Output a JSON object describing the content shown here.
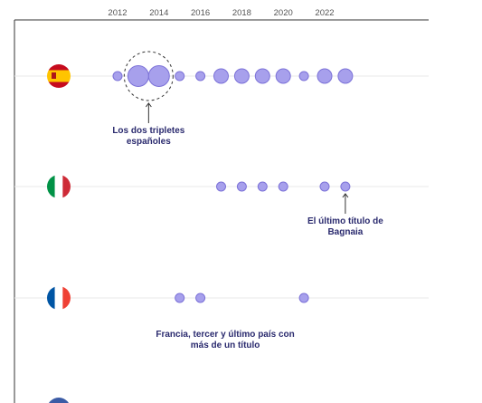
{
  "chart_data": {
    "type": "scatter",
    "x_ticks": [
      "2012",
      "2014",
      "2016",
      "2018",
      "2020",
      "2022"
    ],
    "xlim": [
      2011,
      2025
    ],
    "rows": [
      {
        "country": "spain",
        "flag_colors": [
          "#c60b1e",
          "#ffc400",
          "#c60b1e"
        ],
        "flag_orientation": "horizontal",
        "points": [
          {
            "x": 2012,
            "size": 1
          },
          {
            "x": 2013,
            "size": 3
          },
          {
            "x": 2014,
            "size": 3
          },
          {
            "x": 2015,
            "size": 1
          },
          {
            "x": 2016,
            "size": 1
          },
          {
            "x": 2017,
            "size": 2
          },
          {
            "x": 2018,
            "size": 2
          },
          {
            "x": 2019,
            "size": 2
          },
          {
            "x": 2020,
            "size": 2
          },
          {
            "x": 2021,
            "size": 1
          },
          {
            "x": 2022,
            "size": 2
          },
          {
            "x": 2023,
            "size": 2
          }
        ],
        "highlight": [
          2013,
          2014
        ],
        "annotation": {
          "lines": [
            "Los dos tripletes",
            "españoles"
          ],
          "x": 2013.5,
          "arrow": true
        }
      },
      {
        "country": "italy",
        "flag_colors": [
          "#009246",
          "#ffffff",
          "#ce2b37"
        ],
        "flag_orientation": "vertical",
        "points": [
          {
            "x": 2017,
            "size": 1
          },
          {
            "x": 2018,
            "size": 1
          },
          {
            "x": 2019,
            "size": 1
          },
          {
            "x": 2020,
            "size": 1
          },
          {
            "x": 2022,
            "size": 1
          },
          {
            "x": 2023,
            "size": 1
          }
        ],
        "annotation": {
          "lines": [
            "El último título de",
            "Bagnaia"
          ],
          "x": 2023,
          "arrow": true
        }
      },
      {
        "country": "france",
        "flag_colors": [
          "#0055a4",
          "#ffffff",
          "#ef4135"
        ],
        "flag_orientation": "vertical",
        "points": [
          {
            "x": 2015,
            "size": 1
          },
          {
            "x": 2016,
            "size": 1
          },
          {
            "x": 2021,
            "size": 1
          }
        ],
        "annotation": {
          "lines": [
            "Francia, tercer y último país con",
            "más de un título"
          ],
          "x": 2017.2,
          "arrow": false
        }
      },
      {
        "country": "partial",
        "flag_colors": [
          "#3b5ba5",
          "#ffffff",
          "#d62d3a"
        ],
        "flag_orientation": "horizontal",
        "points": []
      }
    ]
  }
}
